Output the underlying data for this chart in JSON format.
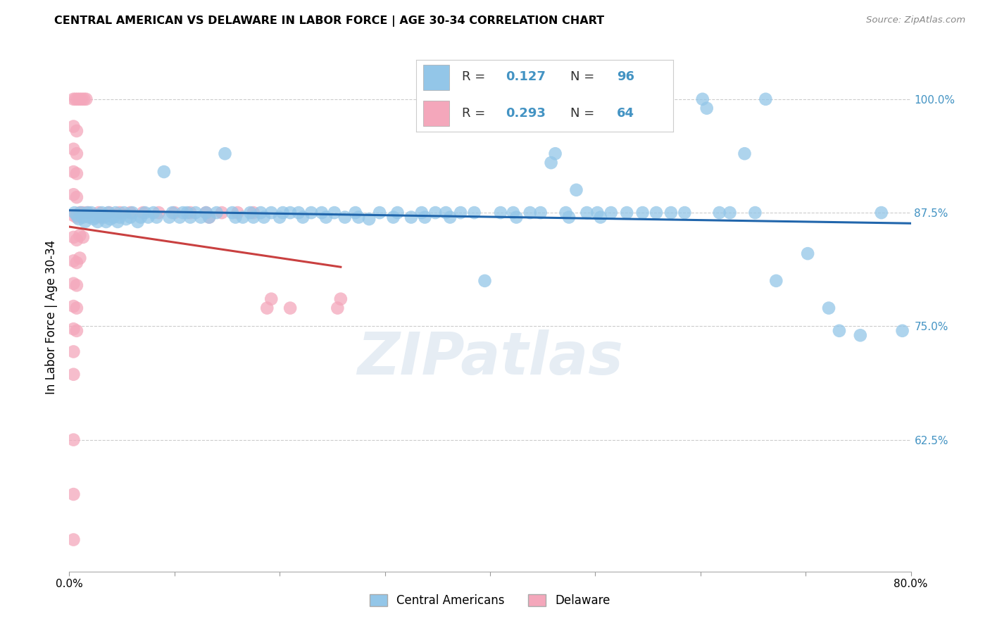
{
  "title": "CENTRAL AMERICAN VS DELAWARE IN LABOR FORCE | AGE 30-34 CORRELATION CHART",
  "source": "Source: ZipAtlas.com",
  "ylabel": "In Labor Force | Age 30-34",
  "xmin": 0.0,
  "xmax": 0.8,
  "ymin": 0.48,
  "ymax": 1.04,
  "yticks": [
    0.625,
    0.75,
    0.875,
    1.0
  ],
  "ytick_labels": [
    "62.5%",
    "75.0%",
    "87.5%",
    "100.0%"
  ],
  "xticks": [
    0.0,
    0.1,
    0.2,
    0.3,
    0.4,
    0.5,
    0.6,
    0.7,
    0.8
  ],
  "xtick_labels": [
    "0.0%",
    "",
    "",
    "",
    "",
    "",
    "",
    "",
    "80.0%"
  ],
  "blue_R": 0.127,
  "blue_N": 96,
  "pink_R": 0.293,
  "pink_N": 64,
  "blue_color": "#93c6e8",
  "pink_color": "#f4a7bb",
  "blue_line_color": "#2166ac",
  "pink_line_color": "#c94040",
  "watermark": "ZIPatlas",
  "blue_points": [
    [
      0.005,
      0.875
    ],
    [
      0.007,
      0.872
    ],
    [
      0.009,
      0.868
    ],
    [
      0.011,
      0.875
    ],
    [
      0.013,
      0.87
    ],
    [
      0.015,
      0.865
    ],
    [
      0.017,
      0.875
    ],
    [
      0.019,
      0.87
    ],
    [
      0.021,
      0.875
    ],
    [
      0.023,
      0.868
    ],
    [
      0.025,
      0.87
    ],
    [
      0.027,
      0.865
    ],
    [
      0.029,
      0.872
    ],
    [
      0.031,
      0.875
    ],
    [
      0.033,
      0.87
    ],
    [
      0.035,
      0.865
    ],
    [
      0.037,
      0.875
    ],
    [
      0.039,
      0.868
    ],
    [
      0.042,
      0.87
    ],
    [
      0.044,
      0.875
    ],
    [
      0.046,
      0.865
    ],
    [
      0.048,
      0.87
    ],
    [
      0.052,
      0.875
    ],
    [
      0.054,
      0.868
    ],
    [
      0.058,
      0.87
    ],
    [
      0.06,
      0.875
    ],
    [
      0.065,
      0.865
    ],
    [
      0.068,
      0.87
    ],
    [
      0.072,
      0.875
    ],
    [
      0.075,
      0.87
    ],
    [
      0.08,
      0.875
    ],
    [
      0.083,
      0.87
    ],
    [
      0.09,
      0.92
    ],
    [
      0.095,
      0.87
    ],
    [
      0.098,
      0.875
    ],
    [
      0.105,
      0.87
    ],
    [
      0.108,
      0.875
    ],
    [
      0.112,
      0.875
    ],
    [
      0.115,
      0.87
    ],
    [
      0.12,
      0.875
    ],
    [
      0.125,
      0.87
    ],
    [
      0.13,
      0.875
    ],
    [
      0.133,
      0.87
    ],
    [
      0.14,
      0.875
    ],
    [
      0.148,
      0.94
    ],
    [
      0.155,
      0.875
    ],
    [
      0.158,
      0.87
    ],
    [
      0.165,
      0.87
    ],
    [
      0.172,
      0.875
    ],
    [
      0.175,
      0.87
    ],
    [
      0.182,
      0.875
    ],
    [
      0.185,
      0.87
    ],
    [
      0.192,
      0.875
    ],
    [
      0.2,
      0.87
    ],
    [
      0.203,
      0.875
    ],
    [
      0.21,
      0.875
    ],
    [
      0.218,
      0.875
    ],
    [
      0.222,
      0.87
    ],
    [
      0.23,
      0.875
    ],
    [
      0.24,
      0.875
    ],
    [
      0.244,
      0.87
    ],
    [
      0.252,
      0.875
    ],
    [
      0.262,
      0.87
    ],
    [
      0.272,
      0.875
    ],
    [
      0.275,
      0.87
    ],
    [
      0.285,
      0.868
    ],
    [
      0.295,
      0.875
    ],
    [
      0.308,
      0.87
    ],
    [
      0.312,
      0.875
    ],
    [
      0.325,
      0.87
    ],
    [
      0.335,
      0.875
    ],
    [
      0.338,
      0.87
    ],
    [
      0.348,
      0.875
    ],
    [
      0.358,
      0.875
    ],
    [
      0.362,
      0.87
    ],
    [
      0.372,
      0.875
    ],
    [
      0.385,
      0.875
    ],
    [
      0.395,
      0.8
    ],
    [
      0.41,
      0.875
    ],
    [
      0.422,
      0.875
    ],
    [
      0.425,
      0.87
    ],
    [
      0.438,
      0.875
    ],
    [
      0.448,
      0.875
    ],
    [
      0.458,
      0.93
    ],
    [
      0.462,
      0.94
    ],
    [
      0.472,
      0.875
    ],
    [
      0.475,
      0.87
    ],
    [
      0.482,
      0.9
    ],
    [
      0.492,
      0.875
    ],
    [
      0.502,
      0.875
    ],
    [
      0.505,
      0.87
    ],
    [
      0.515,
      0.875
    ],
    [
      0.53,
      0.875
    ],
    [
      0.545,
      0.875
    ],
    [
      0.558,
      0.875
    ],
    [
      0.572,
      0.875
    ],
    [
      0.585,
      0.875
    ],
    [
      0.602,
      1.0
    ],
    [
      0.606,
      0.99
    ],
    [
      0.618,
      0.875
    ],
    [
      0.628,
      0.875
    ],
    [
      0.642,
      0.94
    ],
    [
      0.652,
      0.875
    ],
    [
      0.662,
      1.0
    ],
    [
      0.672,
      0.8
    ],
    [
      0.702,
      0.83
    ],
    [
      0.722,
      0.77
    ],
    [
      0.732,
      0.745
    ],
    [
      0.752,
      0.74
    ],
    [
      0.772,
      0.875
    ],
    [
      0.792,
      0.745
    ]
  ],
  "pink_points": [
    [
      0.004,
      1.0
    ],
    [
      0.006,
      1.0
    ],
    [
      0.008,
      1.0
    ],
    [
      0.01,
      1.0
    ],
    [
      0.012,
      1.0
    ],
    [
      0.014,
      1.0
    ],
    [
      0.016,
      1.0
    ],
    [
      0.004,
      0.97
    ],
    [
      0.007,
      0.965
    ],
    [
      0.004,
      0.945
    ],
    [
      0.007,
      0.94
    ],
    [
      0.004,
      0.92
    ],
    [
      0.007,
      0.918
    ],
    [
      0.004,
      0.895
    ],
    [
      0.007,
      0.892
    ],
    [
      0.004,
      0.872
    ],
    [
      0.007,
      0.87
    ],
    [
      0.01,
      0.875
    ],
    [
      0.013,
      0.875
    ],
    [
      0.004,
      0.848
    ],
    [
      0.007,
      0.845
    ],
    [
      0.01,
      0.85
    ],
    [
      0.013,
      0.848
    ],
    [
      0.004,
      0.822
    ],
    [
      0.007,
      0.82
    ],
    [
      0.01,
      0.825
    ],
    [
      0.004,
      0.797
    ],
    [
      0.007,
      0.795
    ],
    [
      0.004,
      0.772
    ],
    [
      0.007,
      0.77
    ],
    [
      0.004,
      0.747
    ],
    [
      0.007,
      0.745
    ],
    [
      0.004,
      0.722
    ],
    [
      0.004,
      0.697
    ],
    [
      0.018,
      0.875
    ],
    [
      0.028,
      0.875
    ],
    [
      0.03,
      0.87
    ],
    [
      0.038,
      0.875
    ],
    [
      0.048,
      0.875
    ],
    [
      0.058,
      0.875
    ],
    [
      0.07,
      0.875
    ],
    [
      0.085,
      0.875
    ],
    [
      0.1,
      0.875
    ],
    [
      0.115,
      0.875
    ],
    [
      0.13,
      0.875
    ],
    [
      0.133,
      0.87
    ],
    [
      0.145,
      0.875
    ],
    [
      0.16,
      0.875
    ],
    [
      0.175,
      0.875
    ],
    [
      0.188,
      0.77
    ],
    [
      0.192,
      0.78
    ],
    [
      0.21,
      0.77
    ],
    [
      0.255,
      0.77
    ],
    [
      0.258,
      0.78
    ],
    [
      0.004,
      0.625
    ],
    [
      0.004,
      0.565
    ],
    [
      0.004,
      0.515
    ]
  ]
}
